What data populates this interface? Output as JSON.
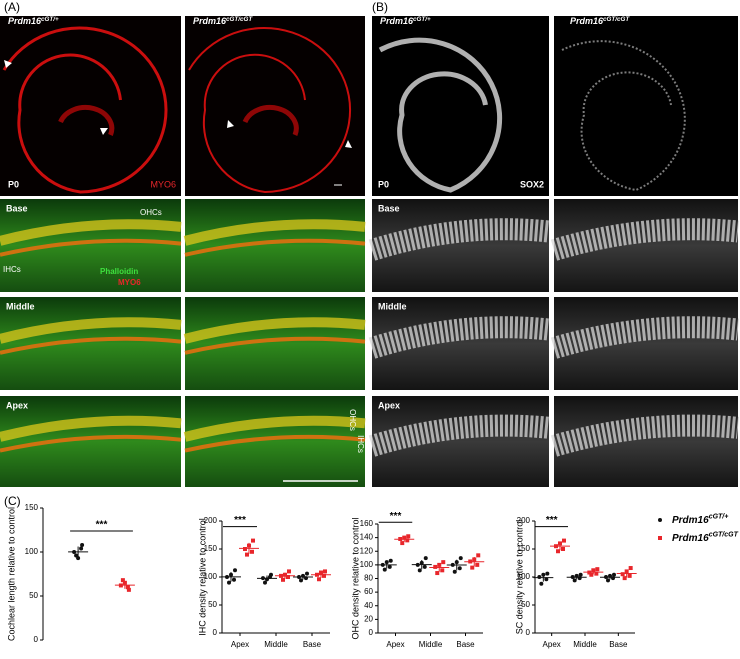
{
  "panel_a": {
    "label": "(A)",
    "genotypes": [
      {
        "base": "Prdm16",
        "sup": "cGT/+"
      },
      {
        "base": "Prdm16",
        "sup": "cGT/cGT"
      }
    ],
    "stage": "P0",
    "stain": "MYO6",
    "rows": [
      "Base",
      "Middle",
      "Apex"
    ],
    "cell_labels": {
      "ohc": "OHCs",
      "ihc": "IHCs"
    },
    "merge_labels": [
      "Phalloidin",
      "MYO6"
    ]
  },
  "panel_b": {
    "label": "(B)",
    "genotypes": [
      {
        "base": "Prdm16",
        "sup": "cGT/+"
      },
      {
        "base": "Prdm16",
        "sup": "cGT/cGT"
      }
    ],
    "stage": "P0",
    "stain": "SOX2",
    "rows": [
      "Base",
      "Middle",
      "Apex"
    ]
  },
  "panel_c": {
    "label": "(C)"
  },
  "chart_data": [
    {
      "type": "strip",
      "ylabel": "Cochlear length relative to control",
      "categories": [
        null
      ],
      "series": [
        {
          "color": "#111111",
          "values": [
            [
              100,
              108,
              96,
              104,
              93
            ]
          ]
        },
        {
          "color": "#e8262b",
          "values": [
            [
              62,
              57,
              68,
              60,
              65
            ]
          ]
        }
      ],
      "ylim": [
        0,
        150
      ],
      "yticks": [
        0,
        50,
        100,
        150
      ],
      "annotation": "***"
    },
    {
      "type": "strip",
      "ylabel": "IHC density relative to control",
      "categories": [
        "Apex",
        "Middle",
        "Base"
      ],
      "series": [
        {
          "color": "#111111",
          "values": [
            [
              100,
              112,
              90,
              95,
              104
            ],
            [
              98,
              104,
              90,
              100,
              96
            ],
            [
              100,
              106,
              94,
              98,
              102
            ]
          ]
        },
        {
          "color": "#e8262b",
          "values": [
            [
              150,
              165,
              140,
              145,
              156
            ],
            [
              102,
              110,
              95,
              100,
              104
            ],
            [
              104,
              110,
              96,
              102,
              108
            ]
          ]
        }
      ],
      "ylim": [
        0,
        200
      ],
      "yticks": [
        0,
        50,
        100,
        150,
        200
      ],
      "annotation": "***"
    },
    {
      "type": "strip",
      "ylabel": "OHC density relative to control",
      "categories": [
        "Apex",
        "Middle",
        "Base"
      ],
      "series": [
        {
          "color": "#111111",
          "values": [
            [
              100,
              106,
              93,
              97,
              104
            ],
            [
              100,
              110,
              92,
              97,
              103
            ],
            [
              100,
              110,
              90,
              95,
              104
            ]
          ]
        },
        {
          "color": "#e8262b",
          "values": [
            [
              138,
              142,
              132,
              136,
              140
            ],
            [
              97,
              104,
              88,
              92,
              100
            ],
            [
              105,
              114,
              96,
              100,
              108
            ]
          ]
        }
      ],
      "ylim": [
        0,
        160
      ],
      "yticks": [
        0,
        20,
        40,
        60,
        80,
        100,
        120,
        140,
        160
      ],
      "annotation": "***"
    },
    {
      "type": "strip",
      "ylabel": "SC density relative to control",
      "categories": [
        "Apex",
        "Middle",
        "Base"
      ],
      "series": [
        {
          "name": {
            "base": "Prdm16",
            "sup": "cGT/+"
          },
          "color": "#111111",
          "values": [
            [
              100,
              106,
              88,
              96,
              104
            ],
            [
              100,
              104,
              94,
              98,
              102
            ],
            [
              100,
              104,
              94,
              98,
              102
            ]
          ]
        },
        {
          "name": {
            "base": "Prdm16",
            "sup": "cGT/cGT"
          },
          "color": "#e8262b",
          "values": [
            [
              155,
              165,
              146,
              150,
              160
            ],
            [
              108,
              114,
              104,
              106,
              112
            ],
            [
              105,
              116,
              98,
              102,
              110
            ]
          ]
        }
      ],
      "ylim": [
        0,
        200
      ],
      "yticks": [
        0,
        50,
        100,
        150,
        200
      ],
      "annotation": "***"
    }
  ]
}
